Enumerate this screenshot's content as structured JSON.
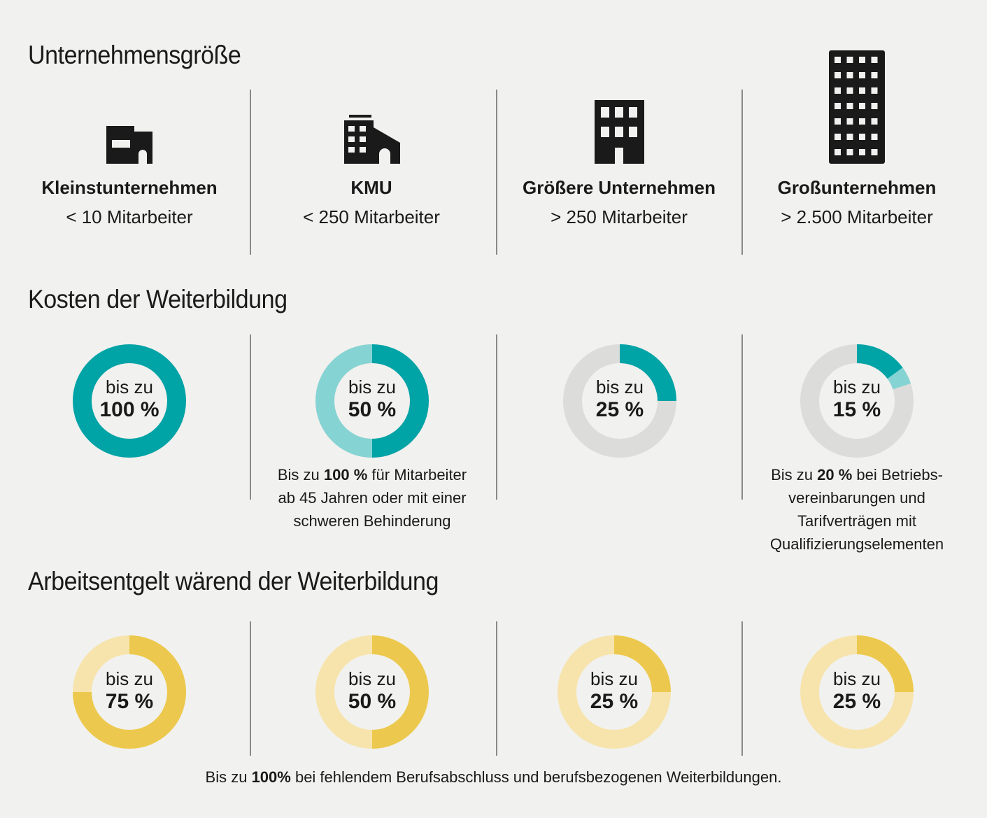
{
  "sections": {
    "size_title": "Unternehmensgröße",
    "cost_title": "Kosten der Weiterbildung",
    "wage_title": "Arbeitsentgelt wärend der Weiterbildung"
  },
  "companies": [
    {
      "name": "Kleinstunternehmen",
      "size": "< 10 Mitarbeiter",
      "icon": "small-building-icon"
    },
    {
      "name": "KMU",
      "size": "< 250 Mitarbeiter",
      "icon": "factory-icon"
    },
    {
      "name": "Größere Unternehmen",
      "size": "> 250 Mitarbeiter",
      "icon": "office-building-icon"
    },
    {
      "name": "Großunternehmen",
      "size": "> 2.500 Mitarbeiter",
      "icon": "skyscraper-icon"
    }
  ],
  "cost": [
    {
      "prefix": "bis zu",
      "value": "100 %",
      "fraction": 1.0,
      "extra_fraction": 0
    },
    {
      "prefix": "bis zu",
      "value": "50 %",
      "fraction": 0.5,
      "extra_fraction": 0.5
    },
    {
      "prefix": "bis zu",
      "value": "25 %",
      "fraction": 0.25,
      "extra_fraction": 0
    },
    {
      "prefix": "bis zu",
      "value": "15 %",
      "fraction": 0.15,
      "extra_fraction": 0.05
    }
  ],
  "cost_notes": {
    "kmu": {
      "before": "Bis zu ",
      "bold": "100 %",
      "after": " für Mitarbeiter",
      "line2": "ab 45 Jahren oder mit einer",
      "line3": "schweren Behinderung"
    },
    "gross": {
      "before": "Bis zu ",
      "bold": "20 %",
      "after": " bei Betriebs-",
      "line2": "vereinbarungen und",
      "line3": "Tarifverträgen mit",
      "line4": "Qualifizierungselementen"
    }
  },
  "wage": [
    {
      "prefix": "bis zu",
      "value": "75 %",
      "fraction": 0.75
    },
    {
      "prefix": "bis zu",
      "value": "50 %",
      "fraction": 0.5
    },
    {
      "prefix": "bis zu",
      "value": "25 %",
      "fraction": 0.25
    },
    {
      "prefix": "bis zu",
      "value": "25 %",
      "fraction": 0.25
    }
  ],
  "footer": {
    "before": "Bis zu ",
    "bold": "100%",
    "after": " bei fehlendem Berufsabschluss und berufsbezogenen Weiterbildungen."
  },
  "colors": {
    "teal": "#00a3a6",
    "teal_light": "#86d3d3",
    "grey": "#dcdcdb",
    "yellow": "#ecc94e",
    "yellow_light": "#f7e4ad",
    "text": "#1a1a1a"
  }
}
